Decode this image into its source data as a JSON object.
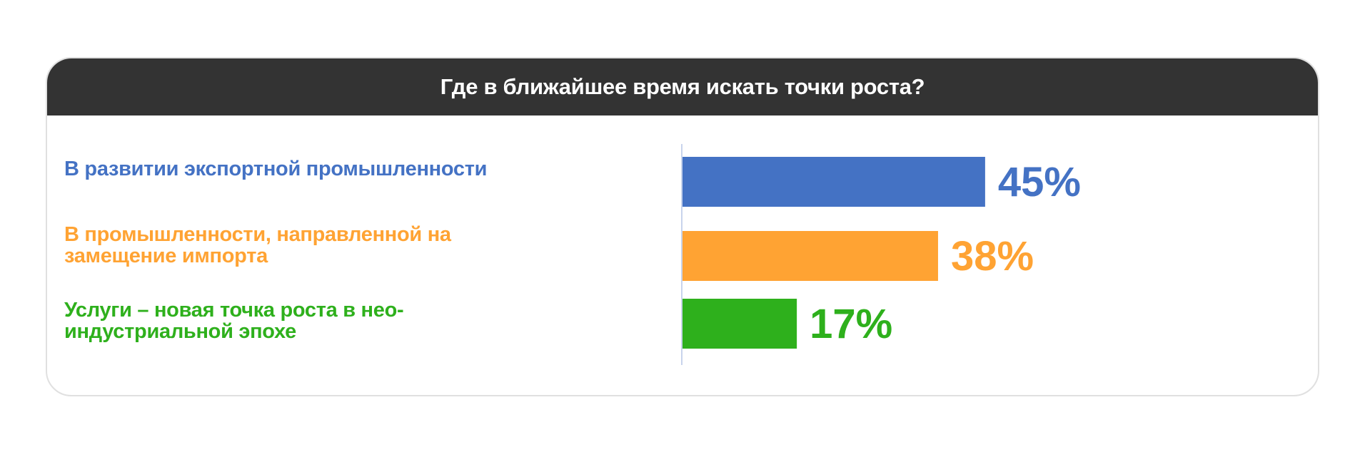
{
  "chart_data": {
    "type": "bar",
    "orientation": "horizontal",
    "title": "Где в ближайшее время искать точки роста?",
    "categories": [
      "В развитии экспортной промышленности",
      "В промышленности, направленной на замещение импорта",
      "Услуги – новая точка роста в нео-индустриальной эпохе"
    ],
    "values": [
      45,
      38,
      17
    ],
    "value_labels": [
      "45%",
      "38%",
      "17%"
    ],
    "unit": "%",
    "colors": [
      "#4472c4",
      "#ffa333",
      "#2eb01c"
    ],
    "xlim": [
      0,
      100
    ],
    "grid": false,
    "legend": "none"
  },
  "colors": {
    "header_bg": "#333333",
    "header_text": "#ffffff",
    "card_border": "#e0e0e0",
    "axis_line": "#c8d4ec"
  }
}
